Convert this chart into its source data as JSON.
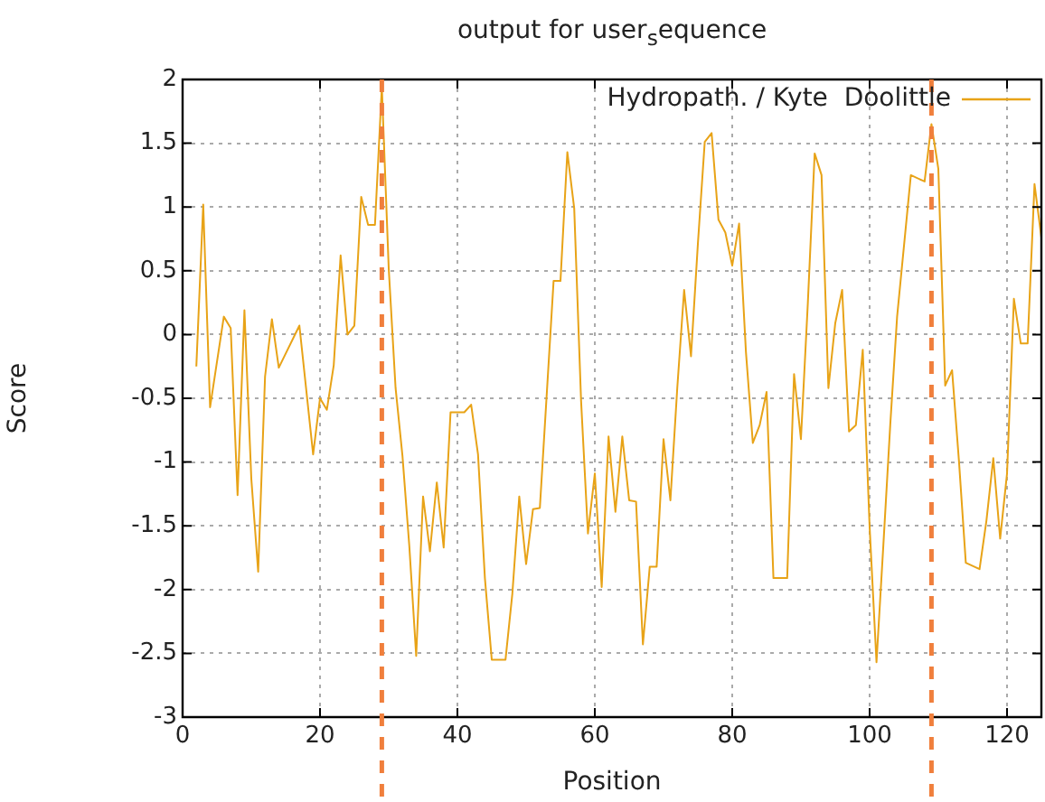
{
  "chart_data": {
    "type": "line",
    "title": "output for user$_{s}$equence",
    "xlabel": "Position",
    "ylabel": "Score",
    "x": [
      2,
      3,
      4,
      6,
      7,
      8,
      9,
      10,
      11,
      12,
      13,
      14,
      17,
      19,
      20,
      21,
      22,
      23,
      24,
      25,
      26,
      27,
      28,
      29,
      30,
      31,
      32,
      33,
      34,
      35,
      36,
      37,
      38,
      39,
      41,
      42,
      43,
      44,
      45,
      47,
      48,
      49,
      50,
      51,
      52,
      54,
      55,
      56,
      57,
      58,
      59,
      60,
      61,
      62,
      63,
      64,
      65,
      66,
      67,
      68,
      69,
      70,
      71,
      72,
      73,
      74,
      75,
      76,
      77,
      78,
      79,
      80,
      81,
      82,
      83,
      84,
      85,
      86,
      88,
      89,
      90,
      91,
      92,
      93,
      94,
      95,
      96,
      97,
      98,
      99,
      100,
      101,
      102,
      103,
      104,
      106,
      108,
      109,
      110,
      111,
      112,
      113,
      114,
      116,
      117,
      118,
      119,
      120,
      121,
      122,
      123,
      124,
      125
    ],
    "series": [
      {
        "name": "Hydropath. / Kyte  Doolittle",
        "color": "#e8a317",
        "values": [
          -0.25,
          1.02,
          -0.57,
          0.14,
          0.05,
          -1.26,
          0.19,
          -1.13,
          -1.86,
          -0.33,
          0.12,
          -0.26,
          0.07,
          -0.94,
          -0.5,
          -0.59,
          -0.24,
          0.62,
          0.0,
          0.07,
          1.08,
          0.86,
          0.86,
          1.94,
          0.52,
          -0.42,
          -0.95,
          -1.66,
          -2.52,
          -1.27,
          -1.7,
          -1.16,
          -1.67,
          -0.61,
          -0.61,
          -0.55,
          -0.94,
          -1.91,
          -2.55,
          -2.55,
          -2.03,
          -1.27,
          -1.8,
          -1.37,
          -1.36,
          0.42,
          0.42,
          1.43,
          0.99,
          -0.52,
          -1.56,
          -1.09,
          -1.98,
          -0.8,
          -1.39,
          -0.8,
          -1.3,
          -1.31,
          -2.43,
          -1.82,
          -1.82,
          -0.82,
          -1.3,
          -0.42,
          0.35,
          -0.17,
          0.71,
          1.51,
          1.58,
          0.9,
          0.8,
          0.54,
          0.87,
          -0.14,
          -0.85,
          -0.71,
          -0.45,
          -1.91,
          -1.91,
          -0.31,
          -0.82,
          0.24,
          1.42,
          1.25,
          -0.42,
          0.09,
          0.35,
          -0.76,
          -0.71,
          -0.12,
          -1.51,
          -2.57,
          -1.65,
          -0.71,
          0.14,
          1.25,
          1.2,
          1.65,
          1.3,
          -0.4,
          -0.28,
          -0.99,
          -1.79,
          -1.84,
          -1.46,
          -0.97,
          -1.6,
          -1.09,
          0.28,
          -0.07,
          -0.07,
          1.18,
          0.76
        ]
      }
    ],
    "xlim": [
      0,
      125
    ],
    "xticks": [
      0,
      20,
      40,
      60,
      80,
      100,
      120
    ],
    "ylim": [
      -3,
      2
    ],
    "yticks": [
      -3,
      -2.5,
      -2,
      -1.5,
      -1,
      -0.5,
      0,
      0.5,
      1,
      1.5,
      2
    ],
    "ref_lines": [
      {
        "axis": "x",
        "value": 29,
        "color": "#f07f3c",
        "line_style": "dashed"
      },
      {
        "axis": "x",
        "value": 109,
        "color": "#f07f3c",
        "line_style": "dashed"
      }
    ],
    "grid": true,
    "legend": "top right",
    "marker": "none",
    "line_style": "solid"
  }
}
